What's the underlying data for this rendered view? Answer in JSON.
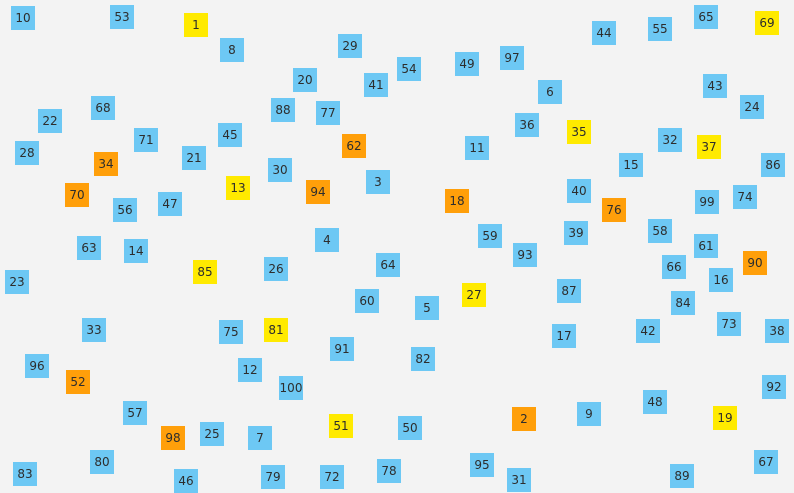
{
  "colors": {
    "background": "#f3f3f3",
    "blue": "#6dc8f4",
    "yellow": "#ffea00",
    "orange": "#ff9f0a"
  },
  "tiles": [
    {
      "label": "10",
      "color": "blue"
    },
    {
      "label": "53",
      "color": "blue"
    },
    {
      "label": "1",
      "color": "yellow"
    },
    {
      "label": "8",
      "color": "blue"
    },
    {
      "label": "29",
      "color": "blue"
    },
    {
      "label": "44",
      "color": "blue"
    },
    {
      "label": "55",
      "color": "blue"
    },
    {
      "label": "65",
      "color": "blue"
    },
    {
      "label": "69",
      "color": "yellow"
    },
    {
      "label": "20",
      "color": "blue"
    },
    {
      "label": "41",
      "color": "blue"
    },
    {
      "label": "54",
      "color": "blue"
    },
    {
      "label": "49",
      "color": "blue"
    },
    {
      "label": "97",
      "color": "blue"
    },
    {
      "label": "6",
      "color": "blue"
    },
    {
      "label": "43",
      "color": "blue"
    },
    {
      "label": "24",
      "color": "blue"
    },
    {
      "label": "68",
      "color": "blue"
    },
    {
      "label": "22",
      "color": "blue"
    },
    {
      "label": "88",
      "color": "blue"
    },
    {
      "label": "77",
      "color": "blue"
    },
    {
      "label": "36",
      "color": "blue"
    },
    {
      "label": "35",
      "color": "yellow"
    },
    {
      "label": "71",
      "color": "blue"
    },
    {
      "label": "45",
      "color": "blue"
    },
    {
      "label": "62",
      "color": "orange"
    },
    {
      "label": "11",
      "color": "blue"
    },
    {
      "label": "32",
      "color": "blue"
    },
    {
      "label": "37",
      "color": "yellow"
    },
    {
      "label": "28",
      "color": "blue"
    },
    {
      "label": "34",
      "color": "orange"
    },
    {
      "label": "21",
      "color": "blue"
    },
    {
      "label": "30",
      "color": "blue"
    },
    {
      "label": "15",
      "color": "blue"
    },
    {
      "label": "86",
      "color": "blue"
    },
    {
      "label": "70",
      "color": "orange"
    },
    {
      "label": "13",
      "color": "yellow"
    },
    {
      "label": "94",
      "color": "orange"
    },
    {
      "label": "3",
      "color": "blue"
    },
    {
      "label": "18",
      "color": "orange"
    },
    {
      "label": "40",
      "color": "blue"
    },
    {
      "label": "74",
      "color": "blue"
    },
    {
      "label": "56",
      "color": "blue"
    },
    {
      "label": "47",
      "color": "blue"
    },
    {
      "label": "76",
      "color": "orange"
    },
    {
      "label": "99",
      "color": "blue"
    },
    {
      "label": "58",
      "color": "blue"
    },
    {
      "label": "39",
      "color": "blue"
    },
    {
      "label": "4",
      "color": "blue"
    },
    {
      "label": "59",
      "color": "blue"
    },
    {
      "label": "63",
      "color": "blue"
    },
    {
      "label": "14",
      "color": "blue"
    },
    {
      "label": "93",
      "color": "blue"
    },
    {
      "label": "61",
      "color": "blue"
    },
    {
      "label": "64",
      "color": "blue"
    },
    {
      "label": "90",
      "color": "orange"
    },
    {
      "label": "66",
      "color": "blue"
    },
    {
      "label": "85",
      "color": "yellow"
    },
    {
      "label": "26",
      "color": "blue"
    },
    {
      "label": "16",
      "color": "blue"
    },
    {
      "label": "23",
      "color": "blue"
    },
    {
      "label": "27",
      "color": "yellow"
    },
    {
      "label": "87",
      "color": "blue"
    },
    {
      "label": "60",
      "color": "blue"
    },
    {
      "label": "84",
      "color": "blue"
    },
    {
      "label": "5",
      "color": "blue"
    },
    {
      "label": "33",
      "color": "blue"
    },
    {
      "label": "75",
      "color": "blue"
    },
    {
      "label": "81",
      "color": "yellow"
    },
    {
      "label": "73",
      "color": "blue"
    },
    {
      "label": "38",
      "color": "blue"
    },
    {
      "label": "42",
      "color": "blue"
    },
    {
      "label": "17",
      "color": "blue"
    },
    {
      "label": "91",
      "color": "blue"
    },
    {
      "label": "82",
      "color": "blue"
    },
    {
      "label": "96",
      "color": "blue"
    },
    {
      "label": "12",
      "color": "blue"
    },
    {
      "label": "52",
      "color": "orange"
    },
    {
      "label": "100",
      "color": "blue"
    },
    {
      "label": "92",
      "color": "blue"
    },
    {
      "label": "48",
      "color": "blue"
    },
    {
      "label": "57",
      "color": "blue"
    },
    {
      "label": "9",
      "color": "blue"
    },
    {
      "label": "2",
      "color": "orange"
    },
    {
      "label": "19",
      "color": "yellow"
    },
    {
      "label": "51",
      "color": "yellow"
    },
    {
      "label": "50",
      "color": "blue"
    },
    {
      "label": "25",
      "color": "blue"
    },
    {
      "label": "98",
      "color": "orange"
    },
    {
      "label": "7",
      "color": "blue"
    },
    {
      "label": "80",
      "color": "blue"
    },
    {
      "label": "95",
      "color": "blue"
    },
    {
      "label": "67",
      "color": "blue"
    },
    {
      "label": "83",
      "color": "blue"
    },
    {
      "label": "78",
      "color": "blue"
    },
    {
      "label": "46",
      "color": "blue"
    },
    {
      "label": "79",
      "color": "blue"
    },
    {
      "label": "72",
      "color": "blue"
    },
    {
      "label": "31",
      "color": "blue"
    },
    {
      "label": "89",
      "color": "blue"
    }
  ]
}
